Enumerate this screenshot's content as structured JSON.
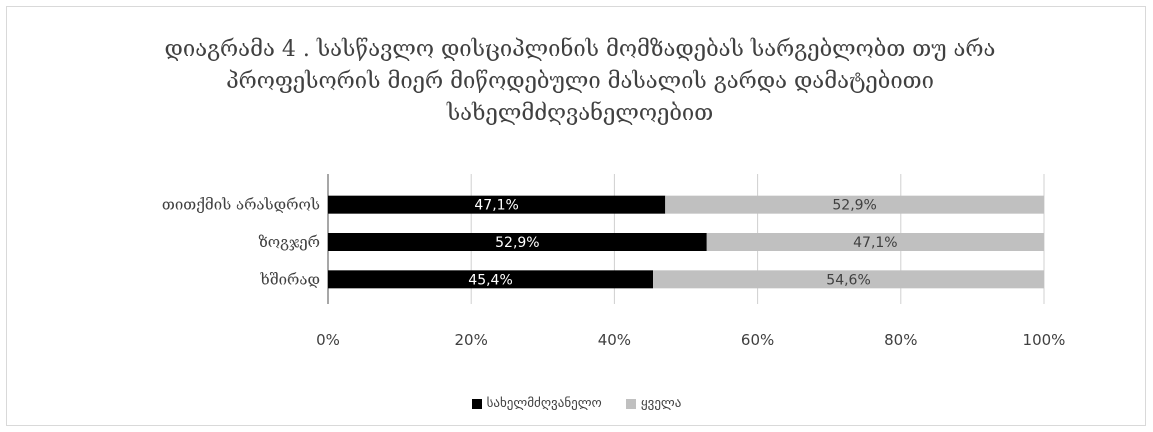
{
  "chart_data": {
    "type": "bar",
    "orientation": "horizontal",
    "stacked_percent": true,
    "title": "დიაგრამა 4 . სასწავლო დისციპლინის მომზადებას სარგებლობთ თუ არა პროფესორის მიერ მიწოდებული მასალის გარდა დამატებითი სახელმძღვანელოებით",
    "categories": [
      "თითქმის არასდროს",
      "ზოგჯერ",
      "ხშირად"
    ],
    "series": [
      {
        "name": "სახელმძღვანელო",
        "values": [
          47.1,
          52.9,
          45.4
        ],
        "labels": [
          "47,1%",
          "52,9%",
          "45,4%"
        ],
        "color": "#000000"
      },
      {
        "name": "ყველა",
        "values": [
          52.9,
          47.1,
          54.6
        ],
        "labels": [
          "52,9%",
          "47,1%",
          "54,6%"
        ],
        "color": "#c0c0c0"
      }
    ],
    "xlim": [
      0,
      100
    ],
    "xticks": [
      "0%",
      "20%",
      "40%",
      "60%",
      "80%",
      "100%"
    ],
    "grid": true,
    "legend": "bottom"
  }
}
